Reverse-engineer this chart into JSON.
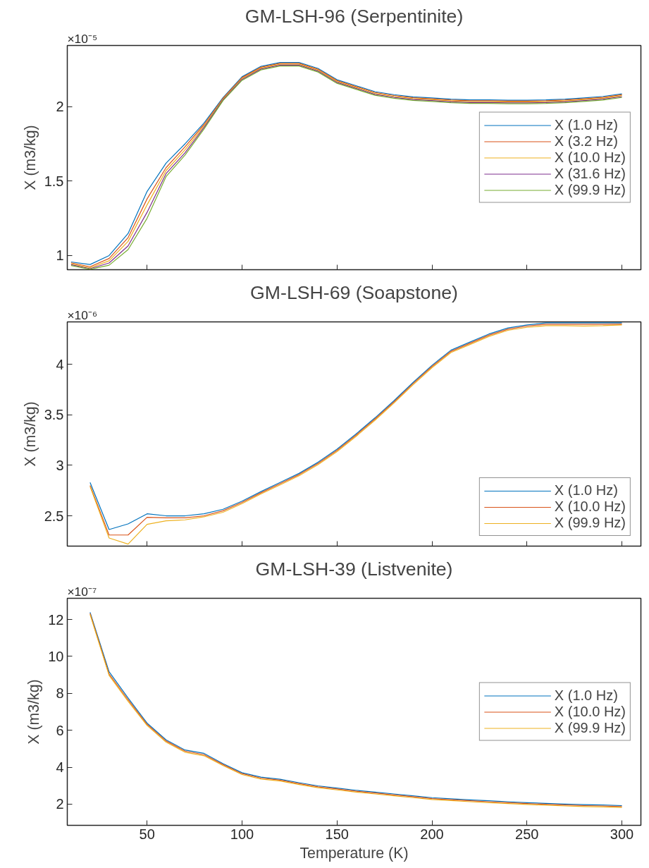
{
  "chart_data": [
    {
      "type": "line",
      "title": "GM-LSH-96 (Serpentinite)",
      "ylabel": "X (m3/kg)",
      "annotations": [
        "×10⁻⁵"
      ],
      "x": [
        10,
        20,
        30,
        40,
        50,
        60,
        70,
        80,
        90,
        100,
        110,
        120,
        130,
        140,
        150,
        160,
        170,
        180,
        190,
        200,
        210,
        220,
        230,
        240,
        250,
        260,
        270,
        280,
        290,
        300
      ],
      "xlim": [
        8,
        310
      ],
      "xticks": [
        50,
        100,
        150,
        200,
        250,
        300
      ],
      "ylim": [
        0.905,
        2.41
      ],
      "yticks": [
        1,
        1.5,
        2
      ],
      "tick_labels": "y",
      "grid": false,
      "legend": "right",
      "line_style": "solid",
      "marker": "none",
      "series": [
        {
          "name": "X (1.0 Hz)",
          "color": "#0072bd",
          "values": [
            0.957,
            0.94,
            1.0,
            1.148,
            1.43,
            1.62,
            1.75,
            1.89,
            2.06,
            2.2,
            2.27,
            2.296,
            2.296,
            2.256,
            2.18,
            2.14,
            2.1,
            2.08,
            2.065,
            2.058,
            2.05,
            2.045,
            2.045,
            2.043,
            2.043,
            2.045,
            2.05,
            2.058,
            2.068,
            2.085
          ]
        },
        {
          "name": "X (3.2 Hz)",
          "color": "#d95319",
          "values": [
            0.951,
            0.925,
            0.98,
            1.12,
            1.38,
            1.59,
            1.73,
            1.88,
            2.055,
            2.194,
            2.264,
            2.29,
            2.29,
            2.25,
            2.174,
            2.134,
            2.094,
            2.074,
            2.059,
            2.052,
            2.044,
            2.039,
            2.039,
            2.037,
            2.037,
            2.039,
            2.044,
            2.052,
            2.062,
            2.079
          ]
        },
        {
          "name": "X (10.0 Hz)",
          "color": "#edb120",
          "values": [
            0.945,
            0.918,
            0.965,
            1.095,
            1.34,
            1.57,
            1.71,
            1.87,
            2.05,
            2.188,
            2.258,
            2.284,
            2.284,
            2.244,
            2.168,
            2.128,
            2.088,
            2.068,
            2.053,
            2.046,
            2.038,
            2.033,
            2.033,
            2.031,
            2.031,
            2.033,
            2.038,
            2.046,
            2.056,
            2.073
          ]
        },
        {
          "name": "X (31.6 Hz)",
          "color": "#7e2f8e",
          "values": [
            0.939,
            0.912,
            0.95,
            1.065,
            1.29,
            1.55,
            1.69,
            1.86,
            2.045,
            2.182,
            2.252,
            2.278,
            2.278,
            2.238,
            2.162,
            2.122,
            2.082,
            2.062,
            2.047,
            2.04,
            2.032,
            2.027,
            2.027,
            2.025,
            2.025,
            2.027,
            2.032,
            2.04,
            2.05,
            2.067
          ]
        },
        {
          "name": "X (99.9 Hz)",
          "color": "#77ac30",
          "values": [
            0.933,
            0.908,
            0.935,
            1.04,
            1.25,
            1.53,
            1.675,
            1.85,
            2.04,
            2.176,
            2.246,
            2.272,
            2.272,
            2.232,
            2.156,
            2.116,
            2.076,
            2.056,
            2.041,
            2.034,
            2.026,
            2.021,
            2.021,
            2.019,
            2.019,
            2.021,
            2.026,
            2.034,
            2.044,
            2.061
          ]
        }
      ]
    },
    {
      "type": "line",
      "title": "GM-LSH-69 (Soapstone)",
      "ylabel": "X (m3/kg)",
      "annotations": [
        "×10⁻⁶"
      ],
      "x": [
        20,
        30,
        40,
        50,
        60,
        70,
        80,
        90,
        100,
        110,
        120,
        130,
        140,
        150,
        160,
        170,
        180,
        190,
        200,
        210,
        220,
        230,
        240,
        250,
        260,
        270,
        280,
        290,
        300
      ],
      "xlim": [
        8,
        310
      ],
      "xticks": [
        50,
        100,
        150,
        200,
        250,
        300
      ],
      "ylim": [
        2.2,
        4.42
      ],
      "yticks": [
        2.5,
        3,
        3.5,
        4
      ],
      "tick_labels": "y",
      "grid": false,
      "legend": "bottom right",
      "line_style": "solid",
      "marker": "none",
      "series": [
        {
          "name": "X (1.0 Hz)",
          "color": "#0072bd",
          "values": [
            2.83,
            2.364,
            2.42,
            2.52,
            2.5,
            2.5,
            2.52,
            2.565,
            2.645,
            2.74,
            2.83,
            2.92,
            3.03,
            3.16,
            3.31,
            3.47,
            3.64,
            3.82,
            3.99,
            4.14,
            4.22,
            4.3,
            4.36,
            4.39,
            4.41,
            4.41,
            4.41,
            4.41,
            4.41
          ]
        },
        {
          "name": "X (10.0 Hz)",
          "color": "#d95319",
          "values": [
            2.8,
            2.31,
            2.31,
            2.485,
            2.48,
            2.48,
            2.5,
            2.55,
            2.633,
            2.728,
            2.818,
            2.908,
            3.018,
            3.148,
            3.298,
            3.458,
            3.628,
            3.808,
            3.978,
            4.128,
            4.208,
            4.288,
            4.348,
            4.378,
            4.396,
            4.396,
            4.396,
            4.396,
            4.398
          ]
        },
        {
          "name": "X (99.9 Hz)",
          "color": "#edb120",
          "values": [
            2.79,
            2.28,
            2.22,
            2.415,
            2.45,
            2.46,
            2.49,
            2.535,
            2.621,
            2.716,
            2.806,
            2.896,
            3.006,
            3.136,
            3.286,
            3.446,
            3.616,
            3.796,
            3.966,
            4.116,
            4.196,
            4.276,
            4.336,
            4.366,
            4.382,
            4.382,
            4.379,
            4.382,
            4.39
          ]
        }
      ]
    },
    {
      "type": "line",
      "title": "GM-LSH-39 (Listvenite)",
      "xlabel": "Temperature (K)",
      "ylabel": "X (m3/kg)",
      "annotations": [
        "×10⁻⁷"
      ],
      "x": [
        20,
        30,
        40,
        50,
        60,
        70,
        80,
        90,
        100,
        110,
        120,
        130,
        140,
        150,
        160,
        170,
        180,
        190,
        200,
        210,
        220,
        230,
        240,
        250,
        260,
        270,
        280,
        290,
        300
      ],
      "xlim": [
        8,
        310
      ],
      "xticks": [
        50,
        100,
        150,
        200,
        250,
        300
      ],
      "ylim": [
        0.85,
        13.15
      ],
      "yticks": [
        2,
        4,
        6,
        8,
        10,
        12
      ],
      "grid": false,
      "legend": "right",
      "line_style": "solid",
      "marker": "none",
      "series": [
        {
          "name": "X (1.0 Hz)",
          "color": "#0072bd",
          "values": [
            12.39,
            9.17,
            7.75,
            6.39,
            5.48,
            4.93,
            4.75,
            4.19,
            3.7,
            3.46,
            3.35,
            3.16,
            2.99,
            2.87,
            2.75,
            2.65,
            2.55,
            2.45,
            2.35,
            2.29,
            2.23,
            2.18,
            2.13,
            2.08,
            2.04,
            2.0,
            1.97,
            1.95,
            1.92
          ]
        },
        {
          "name": "X (10.0 Hz)",
          "color": "#d95319",
          "values": [
            12.33,
            9.05,
            7.65,
            6.32,
            5.42,
            4.87,
            4.68,
            4.14,
            3.65,
            3.41,
            3.3,
            3.11,
            2.94,
            2.82,
            2.7,
            2.6,
            2.5,
            2.4,
            2.3,
            2.24,
            2.18,
            2.13,
            2.08,
            2.03,
            1.99,
            1.95,
            1.92,
            1.9,
            1.87
          ]
        },
        {
          "name": "X (99.9 Hz)",
          "color": "#edb120",
          "values": [
            12.27,
            8.97,
            7.57,
            6.26,
            5.36,
            4.81,
            4.62,
            4.09,
            3.6,
            3.36,
            3.25,
            3.06,
            2.89,
            2.77,
            2.65,
            2.55,
            2.45,
            2.35,
            2.25,
            2.19,
            2.13,
            2.08,
            2.03,
            1.98,
            1.94,
            1.9,
            1.87,
            1.85,
            1.82
          ]
        }
      ]
    }
  ]
}
